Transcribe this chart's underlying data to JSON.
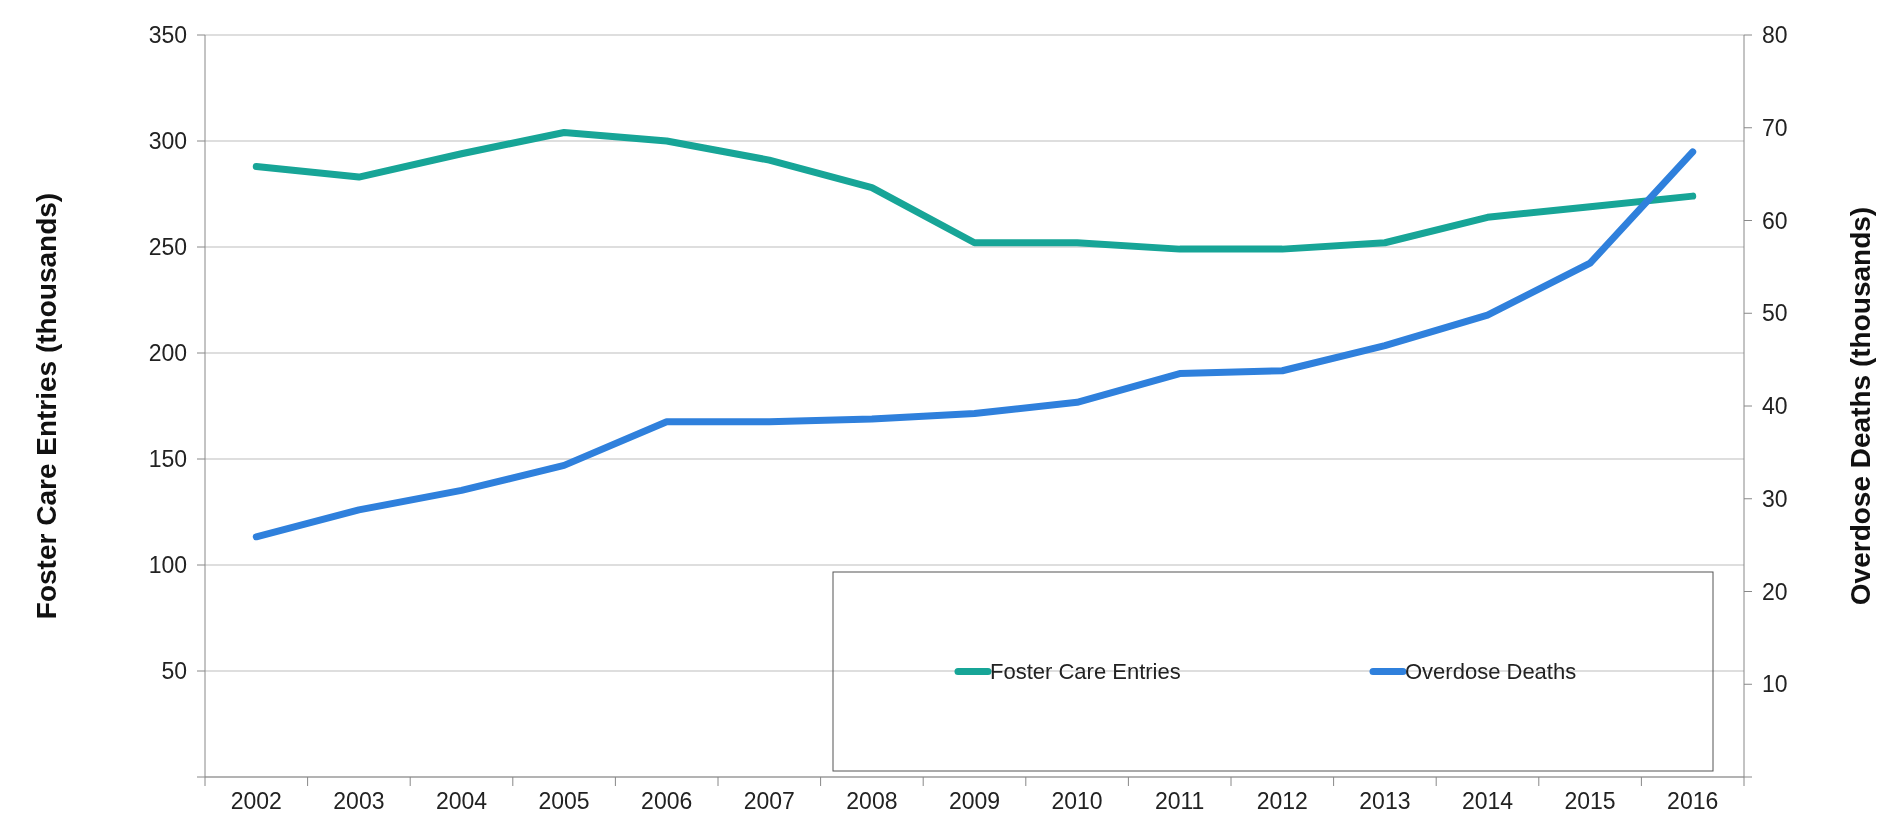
{
  "chart_data": {
    "type": "line",
    "categories": [
      "2002",
      "2003",
      "2004",
      "2005",
      "2006",
      "2007",
      "2008",
      "2009",
      "2010",
      "2011",
      "2012",
      "2013",
      "2014",
      "2015",
      "2016"
    ],
    "ylabel": "Foster Care Entries (thousands)",
    "y2label": "Overdose Deaths (thousands)",
    "ylim": [
      0,
      350
    ],
    "yticks": [
      {
        "value": 0,
        "label": null
      },
      50,
      100,
      150,
      200,
      250,
      300,
      350
    ],
    "y2lim": [
      0,
      80
    ],
    "y2ticks": [
      {
        "value": 0,
        "label": null
      },
      10,
      20,
      30,
      40,
      50,
      60,
      70,
      80
    ],
    "grid": "y",
    "legend": "bottom right",
    "marker": "none",
    "line_style": "solid",
    "series": [
      {
        "name": "Foster Care Entries",
        "color": "#17a597",
        "values": [
          288,
          283,
          294,
          304,
          300,
          291,
          278,
          252,
          252,
          249,
          249,
          252,
          264,
          269,
          274
        ]
      },
      {
        "name": "Overdose Deaths",
        "color": "#2f80dc",
        "axis": "y2",
        "values": [
          25.9,
          28.8,
          30.9,
          33.6,
          38.3,
          38.3,
          38.6,
          39.2,
          40.4,
          43.5,
          43.8,
          46.5,
          49.8,
          55.4,
          67.4
        ]
      }
    ]
  }
}
